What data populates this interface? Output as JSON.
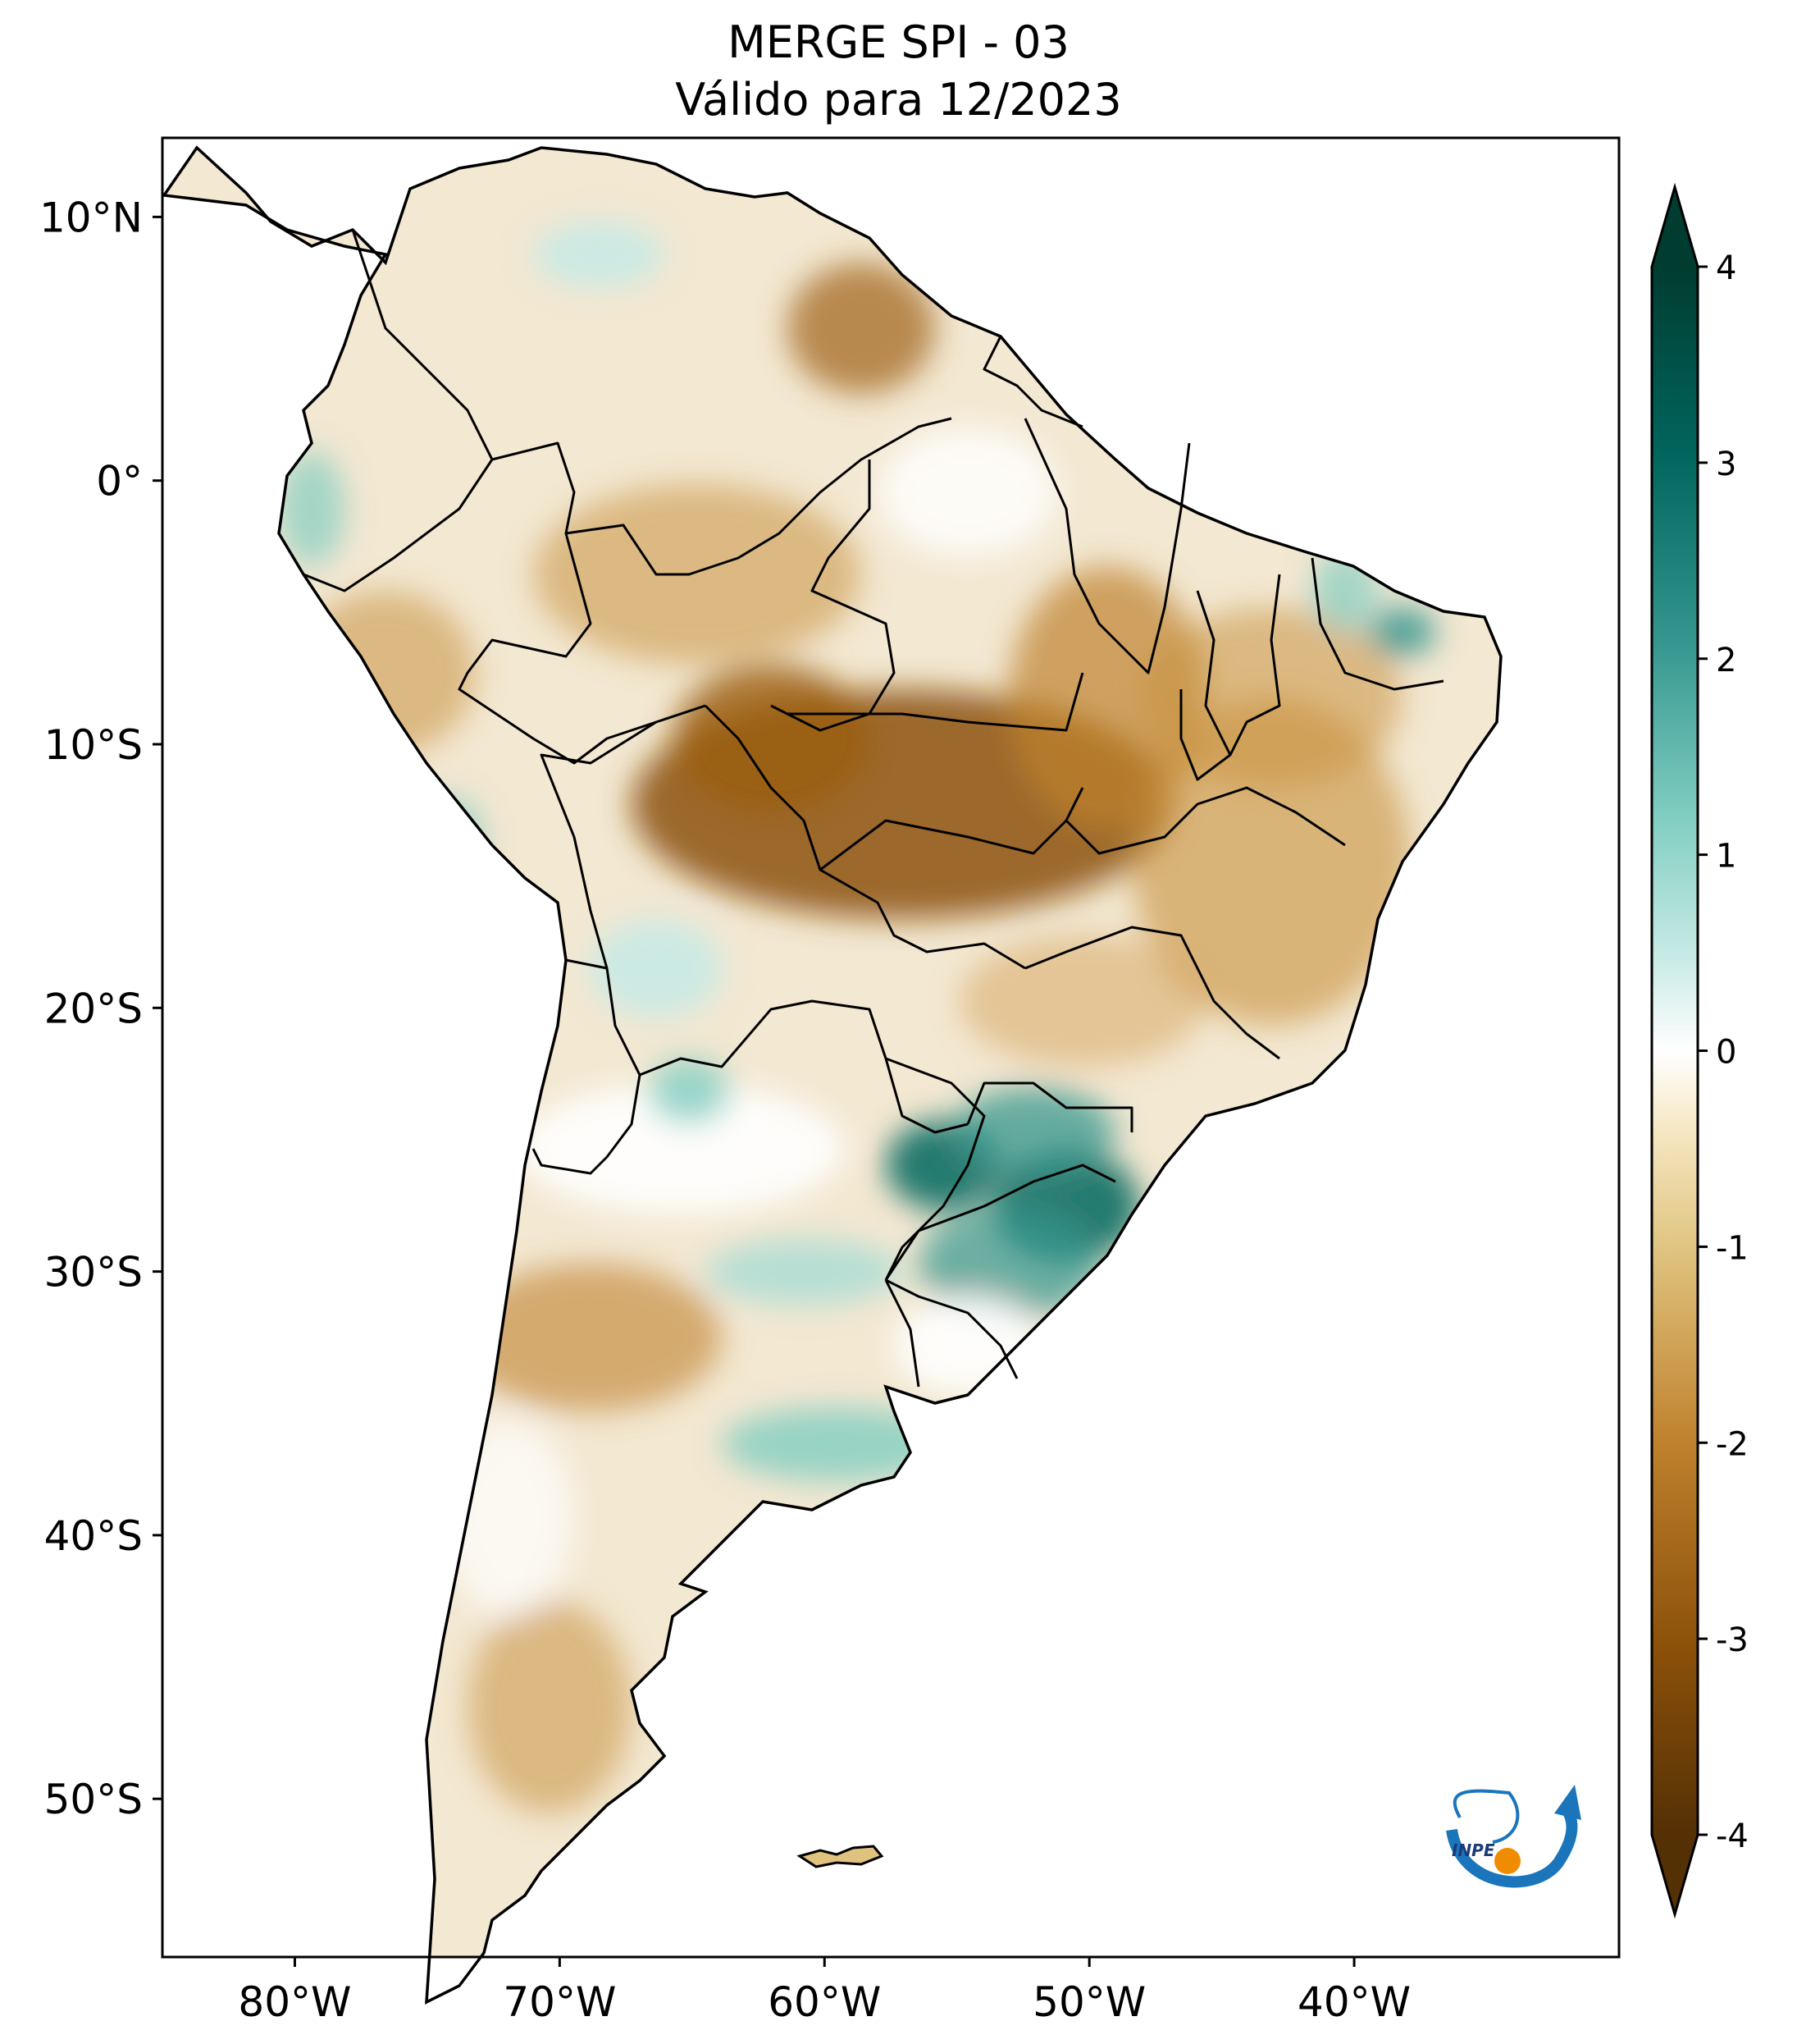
{
  "title": {
    "line1": "MERGE   SPI - 03",
    "line2": "Válido para 12/2023"
  },
  "map": {
    "lat_labels": [
      "10°N",
      "0°",
      "10°S",
      "20°S",
      "30°S",
      "40°S",
      "50°S"
    ],
    "lon_labels": [
      "80°W",
      "70°W",
      "60°W",
      "50°W",
      "40°W"
    ],
    "lat_values": [
      10,
      0,
      -10,
      -20,
      -30,
      -40,
      -50
    ],
    "lon_values": [
      -80,
      -70,
      -60,
      -50,
      -40
    ],
    "extent": {
      "lon_min": -85,
      "lon_max": -30,
      "lat_min": -56,
      "lat_max": 13
    }
  },
  "colorbar": {
    "ticks": [
      "4",
      "3",
      "2",
      "1",
      "0",
      "-1",
      "-2",
      "-3",
      "-4"
    ],
    "tick_values": [
      4,
      3,
      2,
      1,
      0,
      -1,
      -2,
      -3,
      -4
    ],
    "range": [
      -4,
      4
    ],
    "extend": "both",
    "colors": [
      "#543005",
      "#8c510a",
      "#bf812d",
      "#dfc27d",
      "#f6e8c3",
      "#ffffff",
      "#c7eae5",
      "#80cdc1",
      "#35978f",
      "#01665e",
      "#003c30"
    ]
  },
  "logo": {
    "text": "INPE"
  }
}
